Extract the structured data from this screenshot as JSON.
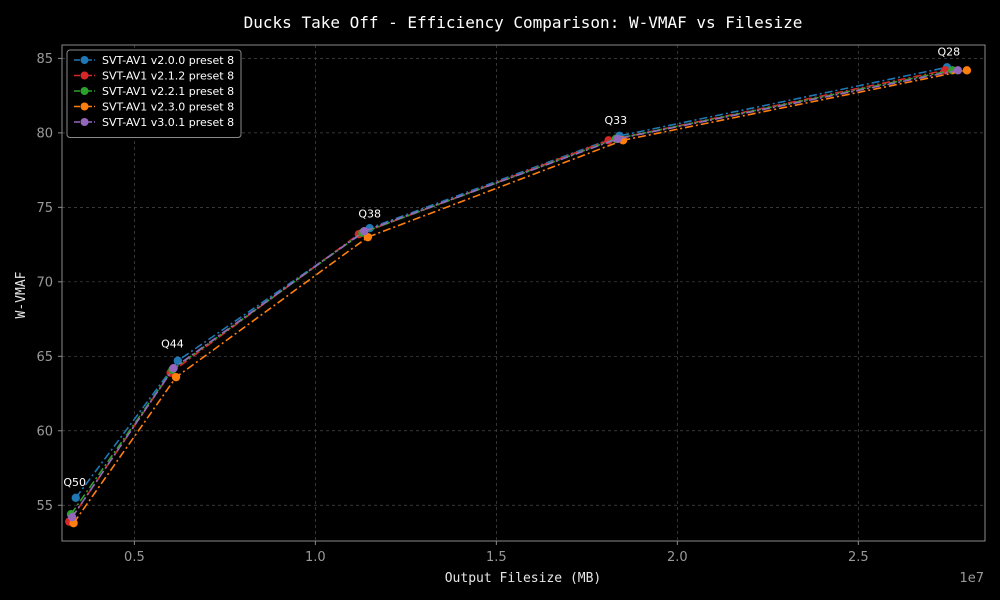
{
  "chart_data": {
    "type": "line",
    "title": "Ducks Take Off - Efficiency Comparison: W-VMAF vs Filesize",
    "xlabel": "Output Filesize (MB)",
    "ylabel": "W-VMAF",
    "x_offset_label": "1e7",
    "xlim": [
      0.3,
      2.85
    ],
    "ylim": [
      52.6,
      85.9
    ],
    "xticks": [
      0.5,
      1.0,
      1.5,
      2.0,
      2.5
    ],
    "xtick_labels": [
      "0.5",
      "1.0",
      "1.5",
      "2.0",
      "2.5"
    ],
    "yticks": [
      55,
      60,
      65,
      70,
      75,
      80,
      85
    ],
    "ytick_labels": [
      "55",
      "60",
      "65",
      "70",
      "75",
      "80",
      "85"
    ],
    "grid": true,
    "legend_position": "top-left",
    "annotations": [
      {
        "text": "Q50",
        "x": 0.335,
        "y": 55.5
      },
      {
        "text": "Q44",
        "x": 0.605,
        "y": 64.8
      },
      {
        "text": "Q38",
        "x": 1.15,
        "y": 73.5
      },
      {
        "text": "Q33",
        "x": 1.83,
        "y": 79.8
      },
      {
        "text": "Q28",
        "x": 2.75,
        "y": 84.4
      }
    ],
    "series": [
      {
        "name": "SVT-AV1 v2.0.0 preset 8",
        "color": "#1f77b4",
        "x": [
          0.338,
          0.62,
          1.15,
          1.84,
          2.745
        ],
        "y": [
          55.5,
          64.7,
          73.6,
          79.8,
          84.4
        ]
      },
      {
        "name": "SVT-AV1 v2.1.2 preset 8",
        "color": "#d62728",
        "x": [
          0.32,
          0.6,
          1.12,
          1.81,
          2.74
        ],
        "y": [
          53.9,
          63.9,
          73.2,
          79.5,
          84.2
        ]
      },
      {
        "name": "SVT-AV1 v2.2.1 preset 8",
        "color": "#2ca02c",
        "x": [
          0.325,
          0.605,
          1.13,
          1.83,
          2.76
        ],
        "y": [
          54.4,
          64.1,
          73.3,
          79.6,
          84.2
        ]
      },
      {
        "name": "SVT-AV1 v2.3.0 preset 8",
        "color": "#ff7f0e",
        "x": [
          0.332,
          0.615,
          1.145,
          1.85,
          2.8
        ],
        "y": [
          53.8,
          63.6,
          73.0,
          79.5,
          84.2
        ]
      },
      {
        "name": "SVT-AV1 v3.0.1 preset 8",
        "color": "#9467bd",
        "x": [
          0.328,
          0.608,
          1.135,
          1.835,
          2.775
        ],
        "y": [
          54.2,
          64.2,
          73.4,
          79.6,
          84.2
        ]
      }
    ]
  }
}
